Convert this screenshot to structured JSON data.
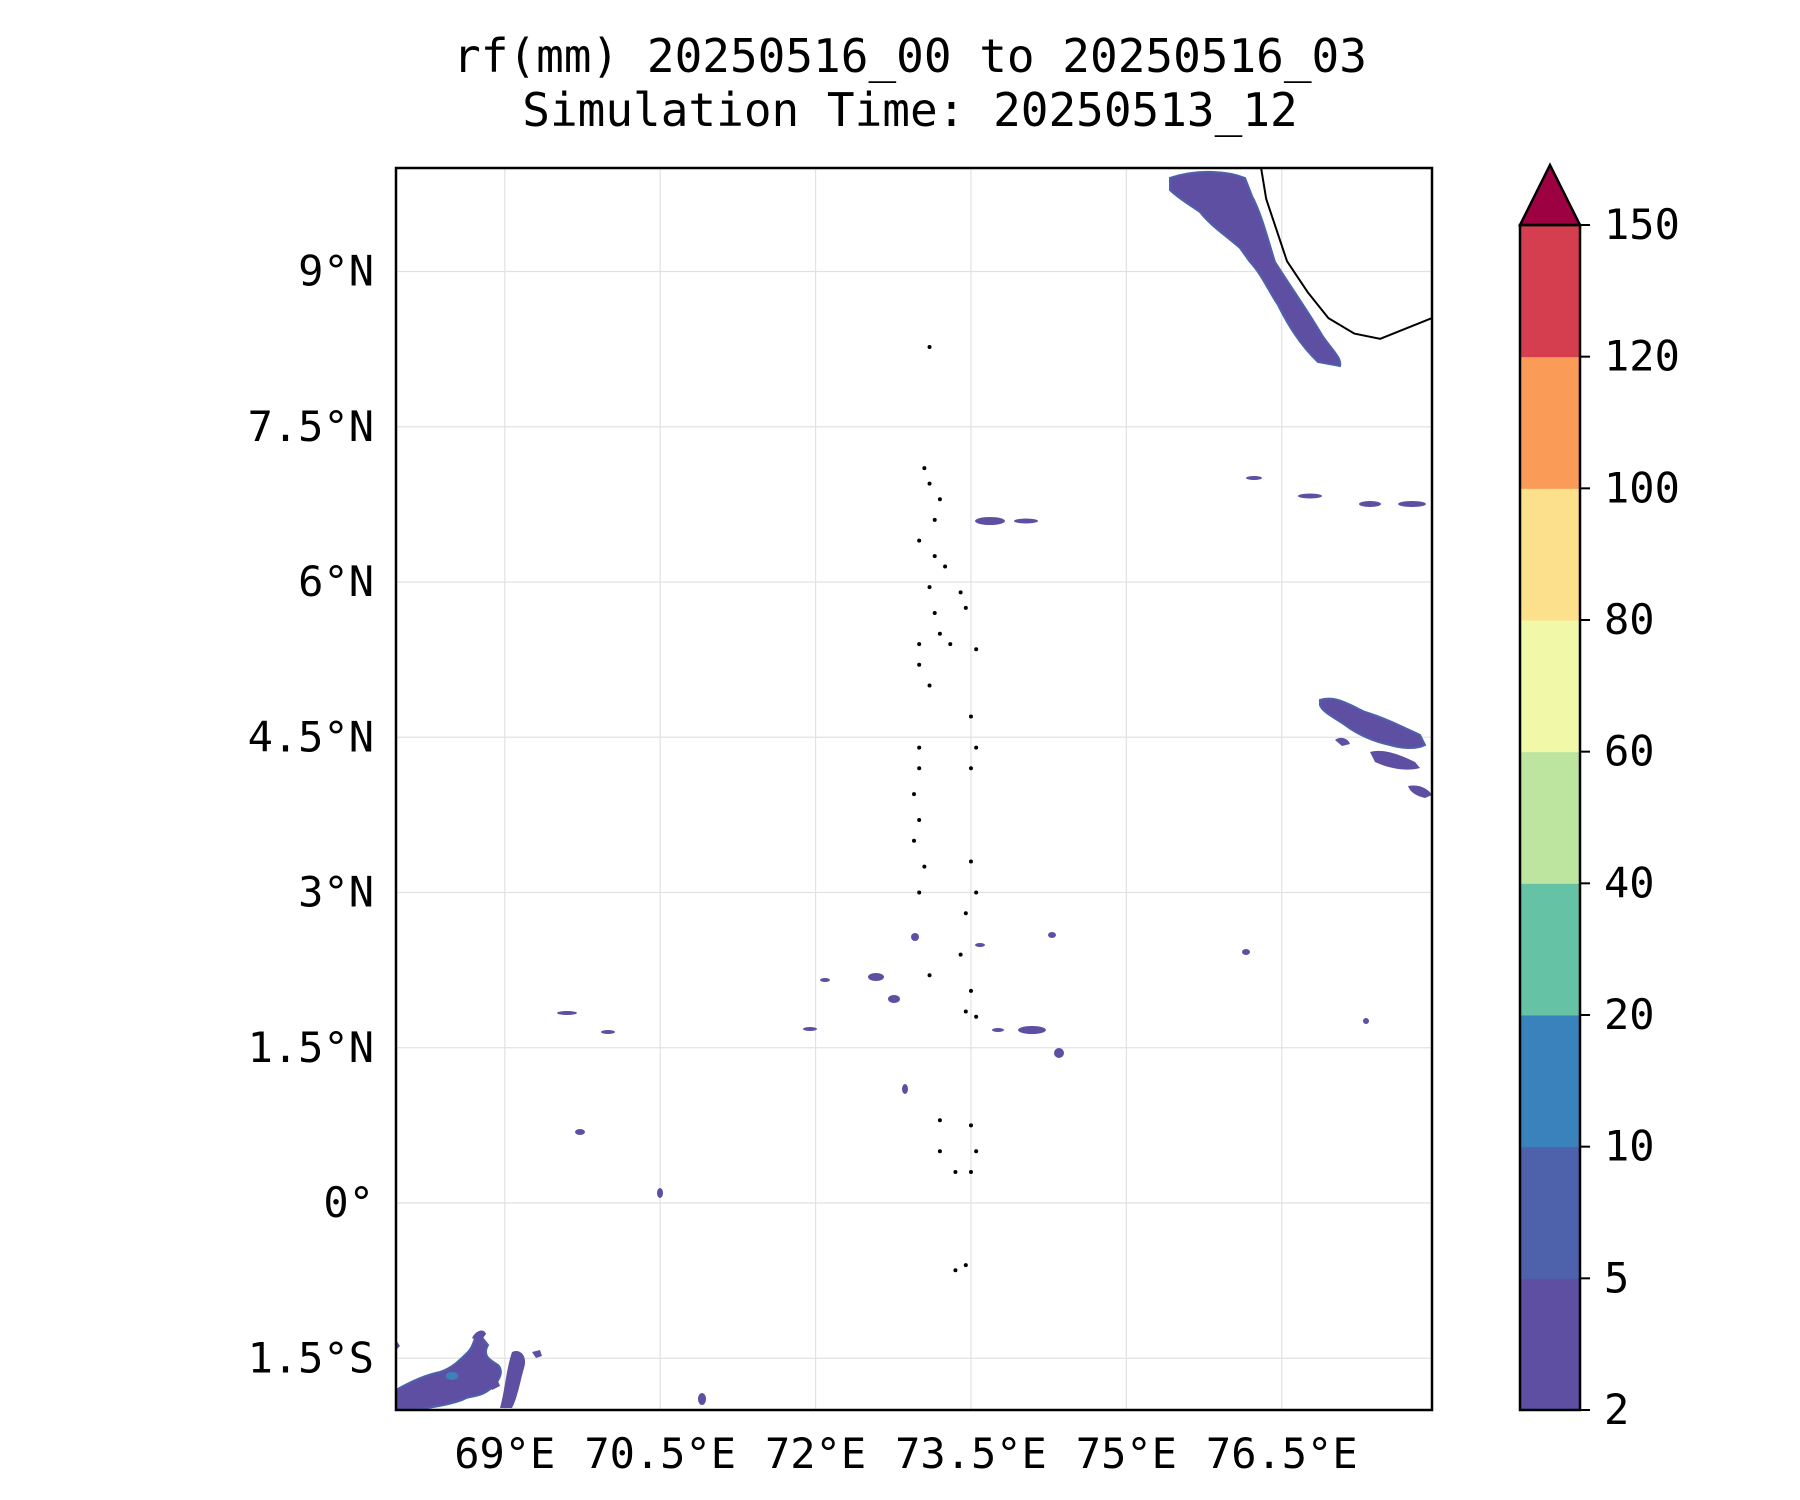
{
  "title": {
    "line1": "rf(mm) 20250516_00 to 20250516_03",
    "line2": "Simulation Time: 20250513_12"
  },
  "map": {
    "lon_range": [
      67.95,
      77.95
    ],
    "lat_range": [
      -2.0,
      10.0
    ],
    "gridlines": true,
    "x_ticks": [
      {
        "value": 69.0,
        "label": "69°E"
      },
      {
        "value": 70.5,
        "label": "70.5°E"
      },
      {
        "value": 72.0,
        "label": "72°E"
      },
      {
        "value": 73.5,
        "label": "73.5°E"
      },
      {
        "value": 75.0,
        "label": "75°E"
      },
      {
        "value": 76.5,
        "label": "76.5°E"
      }
    ],
    "y_ticks": [
      {
        "value": 9.0,
        "label": "9°N"
      },
      {
        "value": 7.5,
        "label": "7.5°N"
      },
      {
        "value": 6.0,
        "label": "6°N"
      },
      {
        "value": 4.5,
        "label": "4.5°N"
      },
      {
        "value": 3.0,
        "label": "3°N"
      },
      {
        "value": 1.5,
        "label": "1.5°N"
      },
      {
        "value": 0.0,
        "label": "0°"
      },
      {
        "value": -1.5,
        "label": "1.5°S"
      }
    ],
    "coastline": [
      [
        76.3,
        10.0
      ],
      [
        76.35,
        9.7
      ],
      [
        76.45,
        9.4
      ],
      [
        76.55,
        9.1
      ],
      [
        76.75,
        8.8
      ],
      [
        76.95,
        8.55
      ],
      [
        77.2,
        8.4
      ],
      [
        77.45,
        8.35
      ],
      [
        77.7,
        8.45
      ],
      [
        77.95,
        8.55
      ]
    ],
    "islands": [
      [
        73.1,
        8.27
      ],
      [
        73.05,
        7.1
      ],
      [
        73.1,
        6.95
      ],
      [
        73.2,
        6.8
      ],
      [
        73.15,
        6.6
      ],
      [
        73.0,
        6.4
      ],
      [
        73.15,
        6.25
      ],
      [
        73.25,
        6.15
      ],
      [
        73.1,
        5.95
      ],
      [
        73.15,
        5.7
      ],
      [
        73.2,
        5.5
      ],
      [
        73.0,
        5.4
      ],
      [
        73.4,
        5.9
      ],
      [
        73.45,
        5.75
      ],
      [
        73.3,
        5.4
      ],
      [
        73.55,
        5.35
      ],
      [
        73.0,
        5.2
      ],
      [
        73.1,
        5.0
      ],
      [
        73.5,
        4.7
      ],
      [
        73.55,
        4.4
      ],
      [
        73.5,
        4.2
      ],
      [
        73.0,
        4.4
      ],
      [
        73.0,
        4.2
      ],
      [
        72.95,
        3.95
      ],
      [
        73.0,
        3.7
      ],
      [
        72.95,
        3.5
      ],
      [
        73.05,
        3.25
      ],
      [
        73.0,
        3.0
      ],
      [
        73.5,
        3.3
      ],
      [
        73.55,
        3.0
      ],
      [
        73.45,
        2.8
      ],
      [
        73.4,
        2.4
      ],
      [
        73.1,
        2.2
      ],
      [
        73.5,
        2.05
      ],
      [
        73.45,
        1.85
      ],
      [
        73.55,
        1.8
      ],
      [
        73.2,
        0.8
      ],
      [
        73.2,
        0.5
      ],
      [
        73.35,
        0.3
      ],
      [
        73.5,
        0.3
      ],
      [
        73.55,
        0.5
      ],
      [
        73.5,
        0.75
      ],
      [
        73.45,
        -0.6
      ],
      [
        73.35,
        -0.65
      ]
    ],
    "rain_legend": "rf(mm)"
  },
  "colorbar": {
    "levels": [
      "2",
      "5",
      "10",
      "20",
      "40",
      "60",
      "80",
      "100",
      "120",
      "150"
    ],
    "colors": [
      "#5e4fa2",
      "#4e61ab",
      "#3a82bb",
      "#66c2a5",
      "#bee5a0",
      "#f1f9a9",
      "#fde08b",
      "#fa9c58",
      "#d53e4f"
    ],
    "extend_color": "#9e0142",
    "extend": "max"
  },
  "rain_colors": {
    "light": "#5e4fa2",
    "outline": "#4e61ab"
  }
}
